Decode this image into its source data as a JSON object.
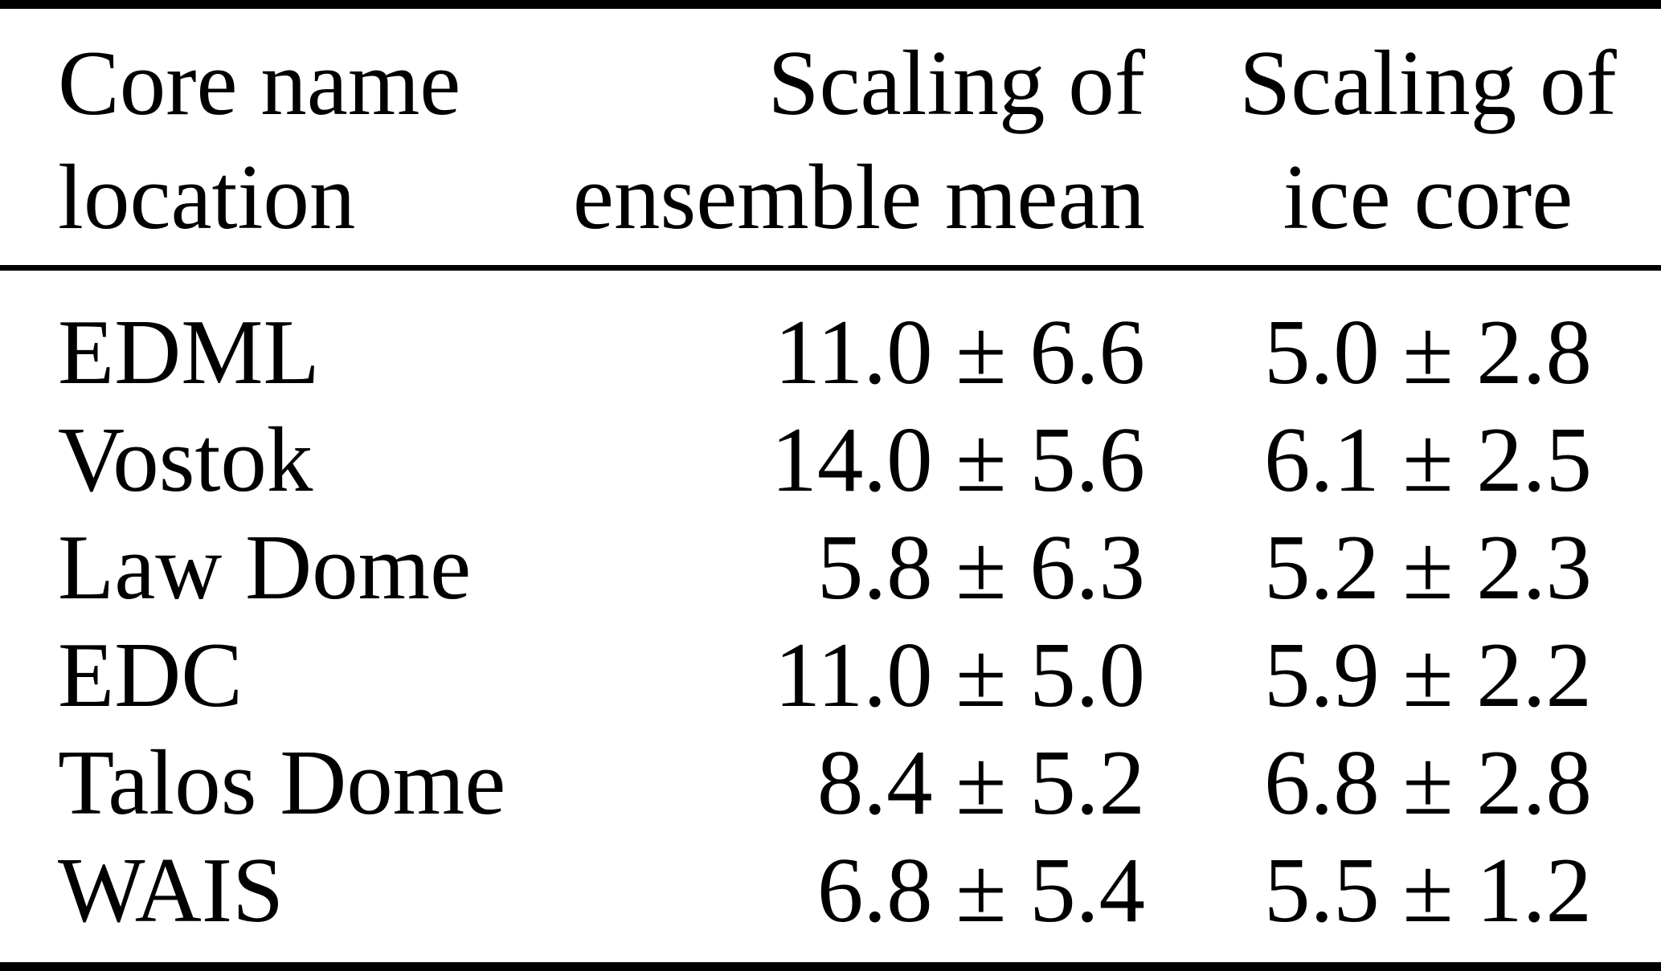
{
  "figure": {
    "type": "table",
    "background_color": "#ffffff",
    "text_color": "#000000",
    "rule_color": "#000000"
  },
  "table": {
    "header": {
      "core": {
        "line1": "Core name",
        "line2": "location"
      },
      "ensemble": {
        "line1": "Scaling of",
        "line2": "ensemble mean"
      },
      "ice": {
        "line1": "Scaling of",
        "line2": "ice core"
      }
    },
    "columns": [
      "Core name location",
      "Scaling of ensemble mean",
      "Scaling of ice core"
    ],
    "rows": [
      {
        "name": "EDML",
        "ensemble": "11.0 ± 6.6",
        "ice": "5.0 ± 2.8"
      },
      {
        "name": "Vostok",
        "ensemble": "14.0 ± 5.6",
        "ice": "6.1 ± 2.5"
      },
      {
        "name": "Law Dome",
        "ensemble": "5.8 ± 6.3",
        "ice": "5.2 ± 2.3"
      },
      {
        "name": "EDC",
        "ensemble": "11.0 ± 5.0",
        "ice": "5.9 ± 2.2"
      },
      {
        "name": "Talos Dome",
        "ensemble": "8.4 ± 5.2",
        "ice": "6.8 ± 2.8"
      },
      {
        "name": "WAIS",
        "ensemble": "6.8 ± 5.4",
        "ice": "5.5 ± 1.2"
      }
    ]
  }
}
